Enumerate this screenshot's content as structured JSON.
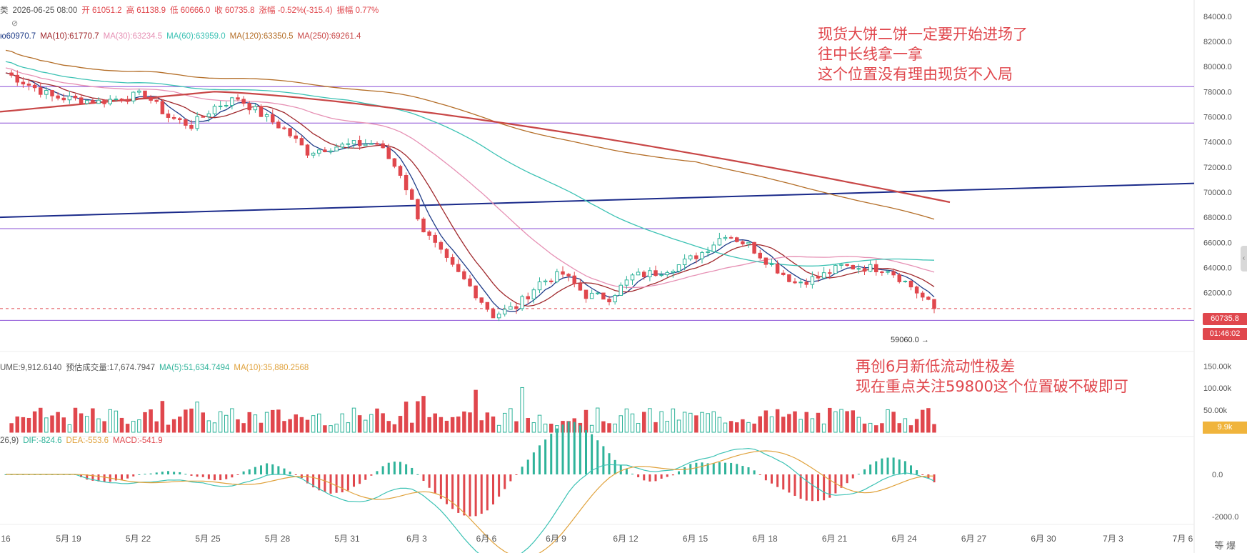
{
  "header": {
    "left_fragment": "类",
    "date": "2026-06-25 08:00",
    "open": "开 61051.2",
    "high": "高 61138.9",
    "low": "低 60666.0",
    "close": "收 60735.8",
    "change": "涨幅 -0.52%(-315.4)",
    "amplitude": "振幅 0.77%"
  },
  "ma_line": [
    {
      "text": "ю60970.7",
      "color": "#1f3c88"
    },
    {
      "text": "MA(10):61770.7",
      "color": "#a0282c"
    },
    {
      "text": "MA(30):63234.5",
      "color": "#e690b4"
    },
    {
      "text": "MA(60):63959.0",
      "color": "#3cc2b4"
    },
    {
      "text": "MA(120):63350.5",
      "color": "#b46e28"
    },
    {
      "text": "MA(250):69261.4",
      "color": "#c84646"
    }
  ],
  "volume_header": [
    {
      "text": "UME:9,912.6140",
      "color": "#555555"
    },
    {
      "text": "预估成交量:17,674.7947",
      "color": "#555555"
    },
    {
      "text": "MA(5):51,634.7494",
      "color": "#2fb39a"
    },
    {
      "text": "MA(10):35,880.2568",
      "color": "#e0a23c"
    }
  ],
  "macd_header": [
    {
      "text": "26,9)",
      "color": "#555555"
    },
    {
      "text": "DIF:-824.6",
      "color": "#2fb39a"
    },
    {
      "text": "DEA:-553.6",
      "color": "#e0a23c"
    },
    {
      "text": "MACD:-541.9",
      "color": "#e0474d"
    }
  ],
  "annotations": {
    "top": [
      "现货大饼二饼一定要开始进场了",
      "往中长线拿一拿",
      "这个位置没有理由现货不入局"
    ],
    "bottom": [
      "再创6月新低流动性极差",
      "现在重点关注59800这个位置破不破即可"
    ]
  },
  "price_tag": "60735.8",
  "countdown_tag": "01:46:02",
  "low_marker": "59060.0 →",
  "volume_tag": "9.9k",
  "corner_label": "等 爆",
  "colors": {
    "up": "#2fb39a",
    "down": "#e0474d",
    "trend_line": "#1a2a8a",
    "level_line": "#8a4fd6"
  },
  "chart_data": [
    {
      "type": "candlestick",
      "title": "",
      "x_axis": {
        "tick_labels": [
          "16",
          "5月 19",
          "5月 22",
          "5月 25",
          "5月 28",
          "5月 31",
          "6月 3",
          "6月 6",
          "6月 9",
          "6月 12",
          "6月 15",
          "6月 18",
          "6月 21",
          "6月 24",
          "6月 27",
          "6月 30",
          "7月 3",
          "7月 6"
        ]
      },
      "y_axis": {
        "range": [
          58000,
          84500
        ],
        "tick_labels": [
          "84000.0",
          "82000.0",
          "80000.0",
          "78000.0",
          "76000.0",
          "74000.0",
          "72000.0",
          "70000.0",
          "68000.0",
          "66000.0",
          "64000.0",
          "62000.0"
        ],
        "ticks": [
          84000,
          82000,
          80000,
          78000,
          76000,
          74000,
          72000,
          70000,
          68000,
          66000,
          64000,
          62000
        ]
      },
      "approximate_close_path": [
        {
          "date": "05-16",
          "close": 79500
        },
        {
          "date": "05-18",
          "close": 77600
        },
        {
          "date": "05-20",
          "close": 77200
        },
        {
          "date": "05-22",
          "close": 77800
        },
        {
          "date": "05-23",
          "close": 76000
        },
        {
          "date": "05-24",
          "close": 75300
        },
        {
          "date": "05-25",
          "close": 76800
        },
        {
          "date": "05-26",
          "close": 77500
        },
        {
          "date": "05-27",
          "close": 76200
        },
        {
          "date": "05-28",
          "close": 75000
        },
        {
          "date": "05-29",
          "close": 73200
        },
        {
          "date": "05-30",
          "close": 73600
        },
        {
          "date": "05-31",
          "close": 73800
        },
        {
          "date": "06-01",
          "close": 73900
        },
        {
          "date": "06-02",
          "close": 71500
        },
        {
          "date": "06-03",
          "close": 67000
        },
        {
          "date": "06-04",
          "close": 64500
        },
        {
          "date": "06-05",
          "close": 62500
        },
        {
          "date": "06-06",
          "close": 60200
        },
        {
          "date": "06-07",
          "close": 60900
        },
        {
          "date": "06-08",
          "close": 62800
        },
        {
          "date": "06-09",
          "close": 63500
        },
        {
          "date": "06-10",
          "close": 61800
        },
        {
          "date": "06-11",
          "close": 61600
        },
        {
          "date": "06-12",
          "close": 63300
        },
        {
          "date": "06-13",
          "close": 63600
        },
        {
          "date": "06-14",
          "close": 64200
        },
        {
          "date": "06-15",
          "close": 65200
        },
        {
          "date": "06-16",
          "close": 66700
        },
        {
          "date": "06-17",
          "close": 65800
        },
        {
          "date": "06-18",
          "close": 64200
        },
        {
          "date": "06-19",
          "close": 62800
        },
        {
          "date": "06-20",
          "close": 63200
        },
        {
          "date": "06-21",
          "close": 64100
        },
        {
          "date": "06-22",
          "close": 64000
        },
        {
          "date": "06-23",
          "close": 63900
        },
        {
          "date": "06-24",
          "close": 62500
        },
        {
          "date": "06-25",
          "close": 60735.8
        }
      ],
      "moving_averages": [
        {
          "name": "MA(10)",
          "last": 61770.7
        },
        {
          "name": "MA(30)",
          "last": 63234.5
        },
        {
          "name": "MA(60)",
          "last": 63959.0
        },
        {
          "name": "MA(120)",
          "last": 63350.5
        },
        {
          "name": "MA(250)",
          "last": 69261.4
        }
      ],
      "horizontal_levels": [
        78400,
        75500,
        67100,
        59800
      ],
      "trend_line": {
        "from": {
          "date": "05-16",
          "price": 68000
        },
        "to": {
          "date": "07-06",
          "price": 70700
        }
      },
      "current_price": 60735.8,
      "period_low": 59060.0
    },
    {
      "type": "bar",
      "title": "",
      "y_axis": {
        "tick_labels": [
          "150.00k",
          "100.00k",
          "50.00k"
        ],
        "ticks": [
          150000,
          100000,
          50000
        ]
      },
      "current_volume": 9912.614,
      "ma5": 51634.7494,
      "ma10": 35880.2568
    },
    {
      "type": "line",
      "title": "",
      "y_axis": {
        "tick_labels": [
          "0.0",
          "-2000.0"
        ],
        "ticks": [
          0,
          -2000
        ]
      },
      "dif": -824.6,
      "dea": -553.6,
      "macd": -541.9
    }
  ]
}
